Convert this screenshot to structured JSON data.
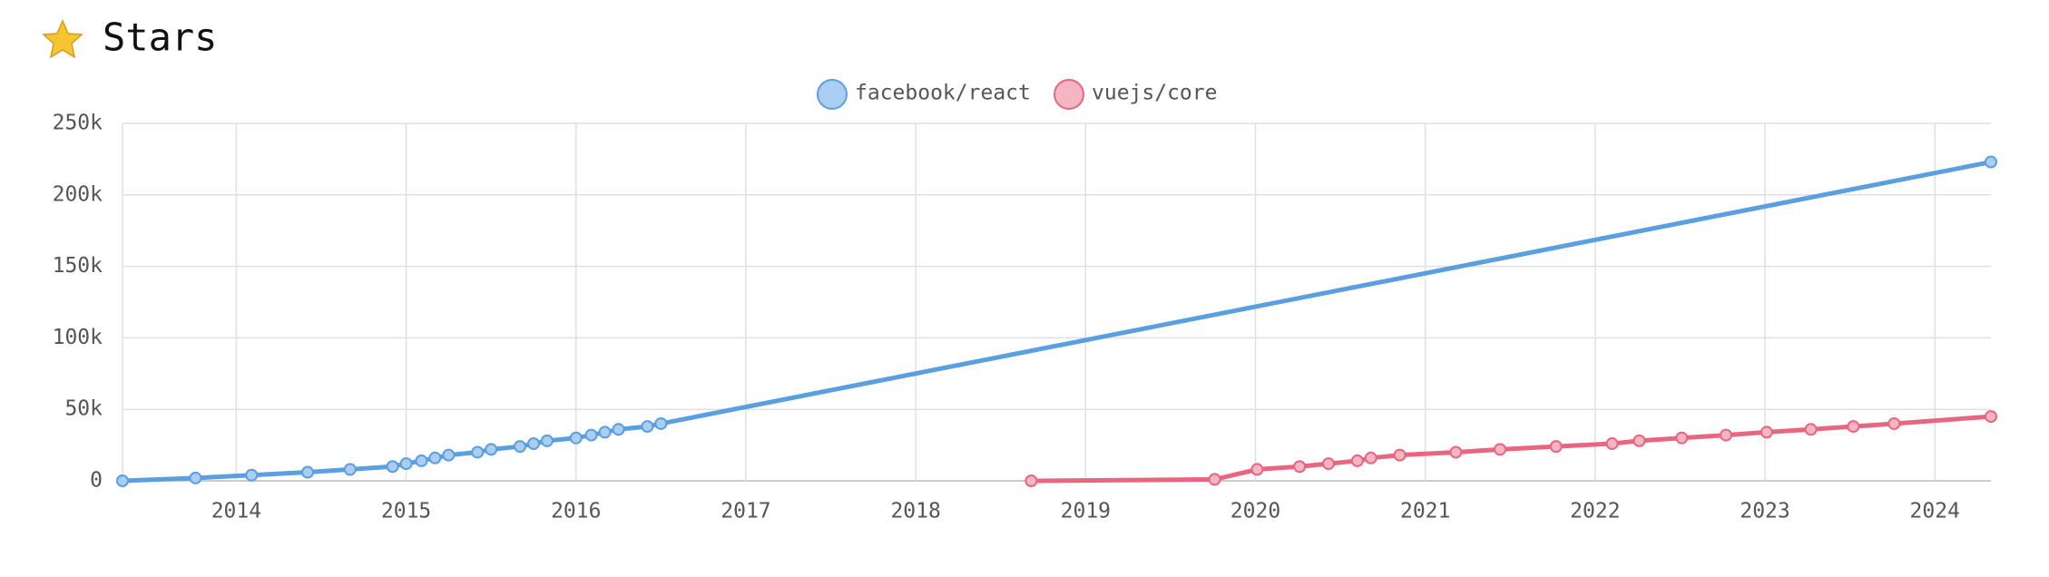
{
  "chart_data": {
    "type": "line",
    "title": "Stars",
    "series": [
      {
        "name": "facebook/react",
        "color": "#5a9fe0",
        "fill": "#aacdf2",
        "x": [
          2013.33,
          2013.76,
          2014.09,
          2014.42,
          2014.67,
          2014.92,
          2015.0,
          2015.09,
          2015.17,
          2015.25,
          2015.42,
          2015.5,
          2015.67,
          2015.75,
          2015.83,
          2016.0,
          2016.09,
          2016.17,
          2016.25,
          2016.42,
          2016.5,
          2024.33
        ],
        "values": [
          0,
          2000,
          4000,
          6000,
          8000,
          10000,
          12000,
          14000,
          16000,
          18000,
          20000,
          22000,
          24000,
          26000,
          28000,
          30000,
          32000,
          34000,
          36000,
          38000,
          40000,
          223000
        ]
      },
      {
        "name": "vuejs/core",
        "color": "#e8667f",
        "fill": "#f5b5c2",
        "x": [
          2018.68,
          2019.76,
          2020.01,
          2020.26,
          2020.43,
          2020.6,
          2020.68,
          2020.85,
          2021.18,
          2021.44,
          2021.77,
          2022.1,
          2022.26,
          2022.51,
          2022.77,
          2023.01,
          2023.27,
          2023.52,
          2023.76,
          2024.33
        ],
        "values": [
          0,
          1000,
          8000,
          10000,
          12000,
          14000,
          16000,
          18000,
          20000,
          22000,
          24000,
          26000,
          28000,
          30000,
          32000,
          34000,
          36000,
          38000,
          40000,
          45000
        ]
      }
    ],
    "xlim": [
      2013.33,
      2024.33
    ],
    "xticks": [
      2014,
      2015,
      2016,
      2017,
      2018,
      2019,
      2020,
      2021,
      2022,
      2023,
      2024
    ],
    "ylim": [
      0,
      250000
    ],
    "yticks": [
      0,
      {
        "value": 50000,
        "label": "50k"
      },
      {
        "value": 100000,
        "label": "100k"
      },
      {
        "value": 150000,
        "label": "150k"
      },
      {
        "value": 200000,
        "label": "200k"
      },
      {
        "value": 250000,
        "label": "250k"
      }
    ],
    "grid": true,
    "legend": "top"
  }
}
